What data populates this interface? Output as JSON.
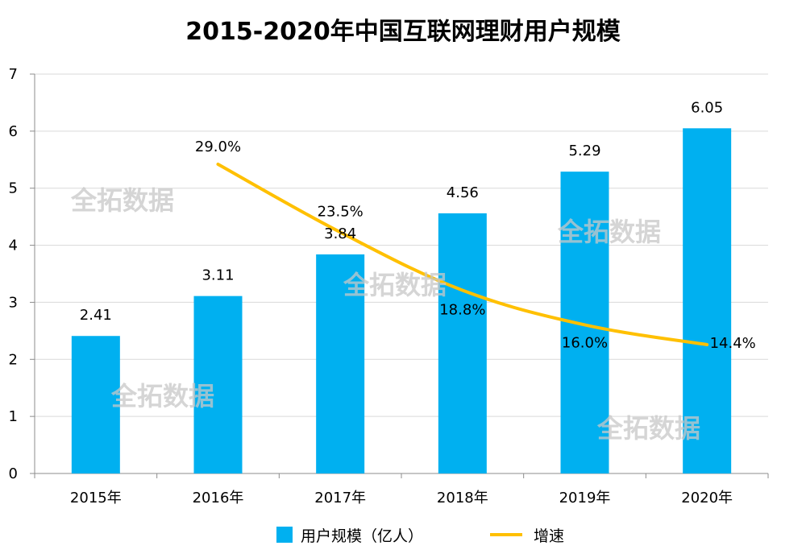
{
  "chart_data": {
    "type": "bar",
    "title": "2015-2020年中国互联网理财用户规模",
    "categories": [
      "2015年",
      "2016年",
      "2017年",
      "2018年",
      "2019年",
      "2020年"
    ],
    "series": [
      {
        "name": "用户规模（亿人）",
        "type": "bar",
        "color": "#00b0f0",
        "values": [
          2.41,
          3.11,
          3.84,
          4.56,
          5.29,
          6.05
        ],
        "labels": [
          "2.41",
          "3.11",
          "3.84",
          "4.56",
          "5.29",
          "6.05"
        ]
      },
      {
        "name": "增速",
        "type": "line",
        "color": "#ffc000",
        "values": [
          null,
          29.0,
          23.5,
          18.8,
          16.0,
          14.4
        ],
        "labels": [
          "",
          "29.0%",
          "23.5%",
          "18.8%",
          "16.0%",
          "14.4%"
        ]
      }
    ],
    "ylim": [
      0,
      7
    ],
    "yticks": [
      "0",
      "1",
      "2",
      "3",
      "4",
      "5",
      "6",
      "7"
    ],
    "grid": true,
    "legend": "bottom"
  },
  "watermarks": [
    "全拓数据",
    "全拓数据",
    "全拓数据",
    "全拓数据",
    "全拓数据"
  ]
}
